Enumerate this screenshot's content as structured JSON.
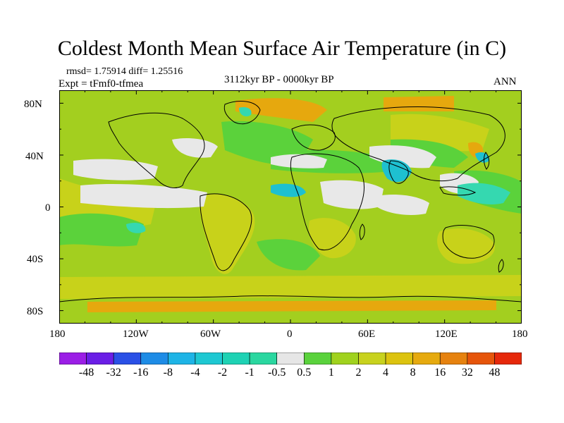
{
  "title": "Coldest Month Mean Surface Air Temperature (in C)",
  "stats": "rmsd= 1.75914  diff= 1.25516",
  "experiment": "Expt = tFmf0-tfmea",
  "period": "3112kyr BP - 0000kyr BP",
  "season": "ANN",
  "map": {
    "projection": "cylindrical-equidistant",
    "lon_range": [
      -180,
      180
    ],
    "lat_range": [
      -90,
      90
    ],
    "lat_labels": [
      "80N",
      "40N",
      "0",
      "40S",
      "80S"
    ],
    "lon_labels": [
      "180",
      "120W",
      "60W",
      "0",
      "60E",
      "120E",
      "180"
    ],
    "background_color": "#a3cf1f",
    "feature_colors": {
      "warm_light": "#c8d21a",
      "warm_mid": "#dcc610",
      "warm_orange": "#e6a80e",
      "neutral": "#e8e8e8",
      "cool_green": "#5bd23b",
      "cool_teal": "#35d8b0",
      "cool_cyan": "#1ec0d0"
    }
  },
  "colorbar": {
    "labels": [
      "-48",
      "-32",
      "-16",
      "-8",
      "-4",
      "-2",
      "-1",
      "-0.5",
      "0.5",
      "1",
      "2",
      "4",
      "8",
      "16",
      "32",
      "48"
    ],
    "colors": [
      "#9b1ee6",
      "#6a1ee6",
      "#2a50e6",
      "#1e8ce6",
      "#1eb4e6",
      "#1ec8d2",
      "#1ed2b4",
      "#2ad7a0",
      "#e6e6e6",
      "#5ad23c",
      "#a0d21e",
      "#c8d21e",
      "#dcc30f",
      "#e6aa0f",
      "#e6820f",
      "#e6550a",
      "#e6280a"
    ]
  }
}
